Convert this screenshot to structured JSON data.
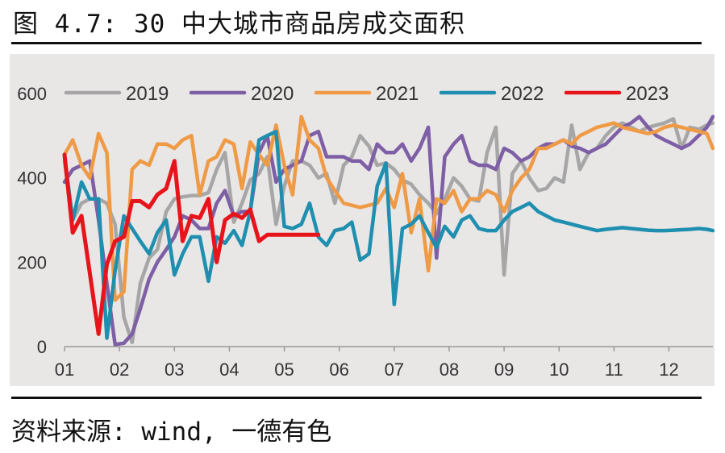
{
  "title": "图 4.7: 30 中大城市商品房成交面积",
  "source": "资料来源: wind, 一德有色",
  "chart_data": {
    "type": "line",
    "title": "",
    "xlabel": "",
    "ylabel": "",
    "ylim": [
      0,
      600
    ],
    "yticks": [
      "0",
      "200",
      "400",
      "600"
    ],
    "x_range": [
      1,
      12.8
    ],
    "xticks": [
      {
        "label": "01",
        "x": 1
      },
      {
        "label": "02",
        "x": 2
      },
      {
        "label": "03",
        "x": 3
      },
      {
        "label": "04",
        "x": 4
      },
      {
        "label": "05",
        "x": 5
      },
      {
        "label": "06",
        "x": 6
      },
      {
        "label": "07",
        "x": 7
      },
      {
        "label": "08",
        "x": 8
      },
      {
        "label": "09",
        "x": 9
      },
      {
        "label": "10",
        "x": 10
      },
      {
        "label": "11",
        "x": 11
      },
      {
        "label": "12",
        "x": 12
      }
    ],
    "grid": false,
    "legend": "top",
    "plot_background": "#e9e6e6",
    "series": [
      {
        "name": "2019",
        "color": "#a6a6a6",
        "x": [
          1.0,
          1.15,
          1.31,
          1.46,
          1.62,
          1.77,
          1.92,
          2.08,
          2.23,
          2.38,
          2.54,
          2.69,
          2.85,
          3.0,
          3.15,
          3.31,
          3.46,
          3.62,
          3.77,
          3.92,
          4.08,
          4.23,
          4.38,
          4.54,
          4.69,
          4.85,
          5.0,
          5.15,
          5.31,
          5.46,
          5.62,
          5.77,
          5.92,
          6.08,
          6.23,
          6.38,
          6.54,
          6.69,
          6.85,
          7.0,
          7.15,
          7.31,
          7.46,
          7.62,
          7.77,
          7.92,
          8.08,
          8.23,
          8.38,
          8.54,
          8.69,
          8.85,
          9.0,
          9.15,
          9.31,
          9.46,
          9.62,
          9.77,
          9.92,
          10.08,
          10.23,
          10.38,
          10.54,
          10.69,
          10.85,
          11.0,
          11.15,
          11.31,
          11.46,
          11.62,
          11.77,
          11.92,
          12.08,
          12.23,
          12.38,
          12.54,
          12.69,
          12.8
        ],
        "y": [
          440,
          300,
          340,
          350,
          350,
          340,
          290,
          70,
          10,
          150,
          210,
          230,
          320,
          350,
          355,
          358,
          358,
          365,
          420,
          460,
          295,
          340,
          395,
          410,
          450,
          290,
          380,
          440,
          440,
          430,
          400,
          410,
          340,
          430,
          450,
          500,
          475,
          430,
          435,
          420,
          395,
          385,
          360,
          340,
          315,
          350,
          400,
          380,
          350,
          345,
          460,
          520,
          170,
          410,
          440,
          400,
          370,
          375,
          400,
          390,
          525,
          420,
          460,
          470,
          500,
          520,
          530,
          520,
          510,
          520,
          525,
          530,
          540,
          470,
          520,
          515,
          525,
          530
        ]
      },
      {
        "name": "2020",
        "color": "#7e5fa6",
        "x": [
          1.0,
          1.15,
          1.31,
          1.46,
          1.62,
          1.77,
          1.92,
          2.08,
          2.23,
          2.38,
          2.54,
          2.69,
          2.85,
          3.0,
          3.15,
          3.31,
          3.46,
          3.62,
          3.77,
          3.92,
          4.08,
          4.23,
          4.38,
          4.54,
          4.69,
          4.85,
          5.0,
          5.15,
          5.31,
          5.46,
          5.62,
          5.77,
          5.92,
          6.08,
          6.23,
          6.38,
          6.54,
          6.69,
          6.85,
          7.0,
          7.15,
          7.31,
          7.46,
          7.62,
          7.77,
          7.92,
          8.08,
          8.23,
          8.38,
          8.54,
          8.69,
          8.85,
          9.0,
          9.15,
          9.31,
          9.46,
          9.62,
          9.77,
          9.92,
          10.08,
          10.23,
          10.38,
          10.54,
          10.69,
          10.85,
          11.0,
          11.15,
          11.31,
          11.46,
          11.62,
          11.77,
          11.92,
          12.08,
          12.23,
          12.38,
          12.54,
          12.69,
          12.8
        ],
        "y": [
          390,
          420,
          430,
          440,
          300,
          150,
          5,
          8,
          30,
          90,
          160,
          200,
          230,
          260,
          310,
          300,
          280,
          280,
          340,
          370,
          310,
          320,
          320,
          460,
          500,
          390,
          420,
          430,
          440,
          500,
          510,
          450,
          450,
          450,
          440,
          440,
          420,
          480,
          460,
          460,
          480,
          440,
          470,
          520,
          210,
          450,
          480,
          500,
          440,
          430,
          430,
          420,
          470,
          460,
          440,
          450,
          470,
          480,
          480,
          490,
          475,
          470,
          460,
          470,
          480,
          500,
          520,
          530,
          545,
          520,
          500,
          490,
          480,
          470,
          480,
          500,
          520,
          545
        ]
      },
      {
        "name": "2021",
        "color": "#ef9a45",
        "x": [
          1.0,
          1.15,
          1.31,
          1.46,
          1.62,
          1.77,
          1.92,
          2.08,
          2.23,
          2.38,
          2.54,
          2.69,
          2.85,
          3.0,
          3.15,
          3.31,
          3.46,
          3.62,
          3.77,
          3.92,
          4.08,
          4.23,
          4.38,
          4.54,
          4.69,
          4.85,
          5.0,
          5.15,
          5.31,
          5.46,
          5.62,
          5.77,
          5.92,
          6.08,
          6.23,
          6.38,
          6.54,
          6.69,
          6.85,
          7.0,
          7.15,
          7.31,
          7.46,
          7.62,
          7.77,
          7.92,
          8.08,
          8.23,
          8.38,
          8.54,
          8.69,
          8.85,
          9.0,
          9.15,
          9.31,
          9.46,
          9.62,
          9.77,
          9.92,
          10.08,
          10.23,
          10.38,
          10.54,
          10.69,
          10.85,
          11.0,
          11.15,
          11.31,
          11.46,
          11.62,
          11.77,
          11.92,
          12.08,
          12.23,
          12.38,
          12.54,
          12.69,
          12.8
        ],
        "y": [
          455,
          490,
          430,
          400,
          505,
          460,
          110,
          130,
          420,
          440,
          430,
          480,
          480,
          470,
          490,
          500,
          360,
          440,
          450,
          490,
          480,
          375,
          485,
          455,
          430,
          525,
          430,
          360,
          545,
          490,
          470,
          400,
          370,
          340,
          335,
          330,
          335,
          340,
          375,
          330,
          410,
          270,
          350,
          180,
          350,
          340,
          370,
          320,
          350,
          350,
          370,
          360,
          320,
          370,
          400,
          420,
          470,
          470,
          480,
          490,
          480,
          500,
          510,
          520,
          525,
          530,
          520,
          515,
          510,
          505,
          510,
          520,
          525,
          520,
          515,
          510,
          505,
          470
        ]
      },
      {
        "name": "2022",
        "color": "#1f8fb0",
        "x": [
          1.0,
          1.15,
          1.31,
          1.46,
          1.62,
          1.77,
          1.92,
          2.08,
          2.23,
          2.38,
          2.54,
          2.69,
          2.85,
          3.0,
          3.15,
          3.31,
          3.46,
          3.62,
          3.77,
          3.92,
          4.08,
          4.23,
          4.38,
          4.54,
          4.69,
          4.85,
          5.0,
          5.15,
          5.31,
          5.46,
          5.62,
          5.77,
          5.92,
          6.08,
          6.23,
          6.38,
          6.54,
          6.69,
          6.85,
          7.0,
          7.15,
          7.31,
          7.46,
          7.62,
          7.77,
          7.92,
          8.08,
          8.23,
          8.38,
          8.54,
          8.69,
          8.85,
          9.0,
          9.15,
          9.31,
          9.46,
          9.62,
          9.77,
          9.92,
          10.08,
          10.23,
          10.38,
          10.54,
          10.69,
          10.85,
          11.0,
          11.15,
          11.31,
          11.46,
          11.62,
          11.77,
          11.92,
          12.08,
          12.23,
          12.38,
          12.54,
          12.69,
          12.8
        ],
        "y": [
          450,
          300,
          390,
          350,
          350,
          20,
          180,
          310,
          280,
          250,
          220,
          270,
          300,
          170,
          220,
          260,
          260,
          155,
          260,
          245,
          275,
          240,
          320,
          490,
          500,
          510,
          285,
          280,
          290,
          340,
          260,
          240,
          275,
          280,
          295,
          205,
          220,
          380,
          435,
          100,
          280,
          290,
          310,
          270,
          235,
          285,
          260,
          300,
          310,
          280,
          275,
          275,
          300,
          320,
          330,
          340,
          320,
          310,
          300,
          295,
          290,
          285,
          280,
          275,
          278,
          280,
          282,
          280,
          278,
          276,
          275,
          275,
          276,
          277,
          278,
          280,
          278,
          275
        ]
      },
      {
        "name": "2023",
        "color": "#e8141c",
        "x": [
          1.0,
          1.15,
          1.31,
          1.46,
          1.62,
          1.77,
          1.92,
          2.08,
          2.23,
          2.38,
          2.54,
          2.69,
          2.85,
          3.0,
          3.15,
          3.31,
          3.46,
          3.62,
          3.77,
          3.92,
          4.08,
          4.23,
          4.38,
          4.54,
          4.69,
          4.85,
          5.0,
          5.15,
          5.31,
          5.46,
          5.62
        ],
        "y": [
          455,
          270,
          310,
          175,
          30,
          195,
          250,
          260,
          345,
          345,
          330,
          360,
          375,
          440,
          250,
          310,
          305,
          350,
          200,
          300,
          315,
          305,
          325,
          250,
          265,
          265,
          265,
          265,
          265,
          265,
          265
        ]
      }
    ]
  }
}
